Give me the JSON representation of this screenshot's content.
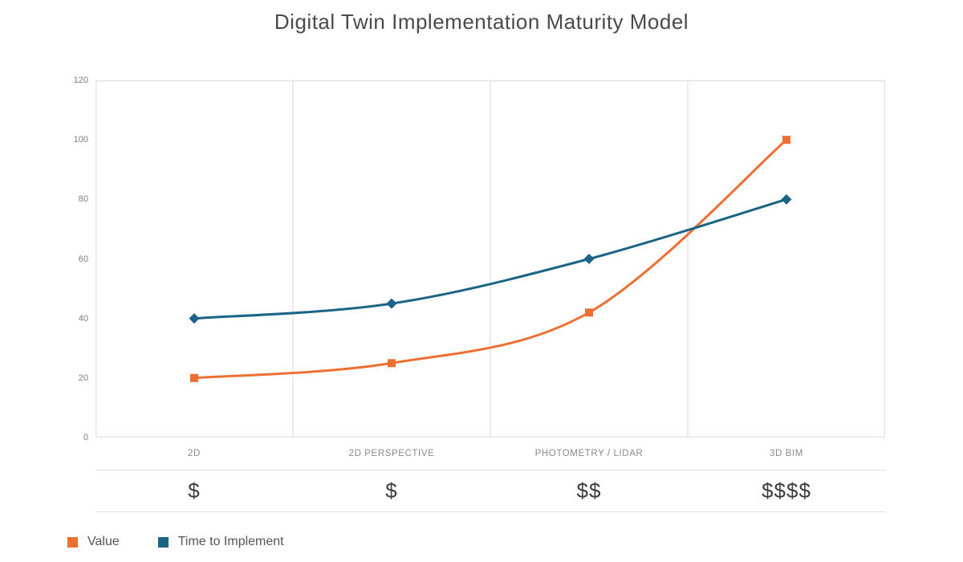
{
  "title": "Digital Twin Implementation Maturity Model",
  "chart_data": {
    "type": "line",
    "subtype": "smooth-spline",
    "categories": [
      "2D",
      "2D PERSPECTIVE",
      "PHOTOMETRY / LIDAR",
      "3D BIM"
    ],
    "series": [
      {
        "name": "Value",
        "values": [
          20,
          25,
          42,
          100
        ],
        "color": "#ED7032",
        "marker": "square"
      },
      {
        "name": "Time to Implement",
        "values": [
          40,
          45,
          60,
          80
        ],
        "color": "#1B6486",
        "marker": "diamond"
      }
    ],
    "cost_row": [
      "$",
      "$",
      "$$",
      "$$$$"
    ],
    "ylim": [
      0,
      120
    ],
    "yticks": [
      120,
      100,
      80,
      60,
      40,
      20,
      0
    ],
    "xlabel": "",
    "ylabel": "",
    "grid": "vertical-category-dividers-only",
    "legend_position": "bottom-left",
    "plot_border_color": "#e4e4e4",
    "gridline_color": "#ebebeb"
  }
}
